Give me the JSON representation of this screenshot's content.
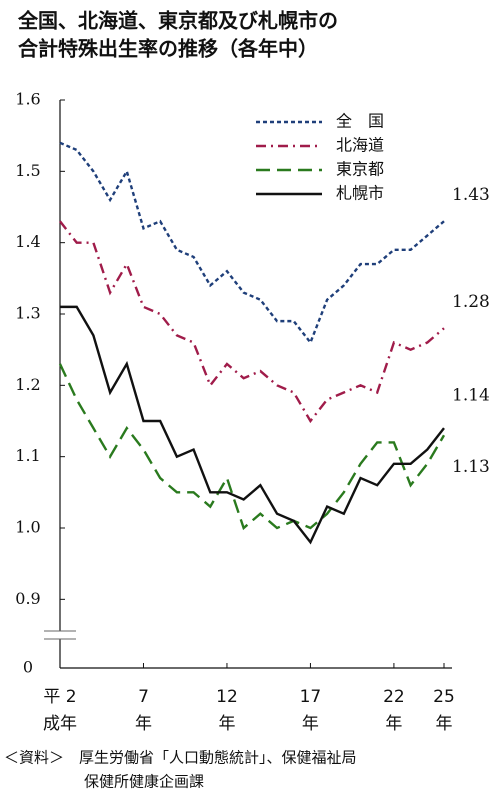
{
  "chart_data": {
    "type": "line",
    "title": [
      "全国、北海道、東京都及び札幌市の",
      "合計特殊出生率の推移（各年中）"
    ],
    "x": [
      2,
      3,
      4,
      5,
      6,
      7,
      8,
      9,
      10,
      11,
      12,
      13,
      14,
      15,
      16,
      17,
      18,
      19,
      20,
      21,
      22,
      23,
      24,
      25
    ],
    "xlim": [
      2,
      25
    ],
    "xticks": [
      {
        "value": 2,
        "label": "平 2"
      },
      7,
      12,
      17,
      22,
      25
    ],
    "xtick_sublabels": [
      "成年",
      "年",
      "年",
      "年",
      "年",
      "年"
    ],
    "ylim": [
      0,
      1.6
    ],
    "axis_break": [
      0,
      0.85
    ],
    "yticks": [
      0,
      0.9,
      {
        "value": 1.0,
        "label": "1.0"
      },
      1.1,
      1.2,
      1.3,
      1.4,
      1.5,
      1.6
    ],
    "grid": false,
    "legend": "top-right",
    "series": [
      {
        "name": "全　国",
        "color": "#1f3f7a",
        "dash": "dotted",
        "values": [
          1.54,
          1.53,
          1.5,
          1.46,
          1.5,
          1.42,
          1.43,
          1.39,
          1.38,
          1.34,
          1.36,
          1.33,
          1.32,
          1.29,
          1.29,
          1.26,
          1.32,
          1.34,
          1.37,
          1.37,
          1.39,
          1.39,
          1.41,
          1.43
        ]
      },
      {
        "name": "北海道",
        "color": "#a01c4a",
        "dash": "dashdot",
        "values": [
          1.43,
          1.4,
          1.4,
          1.33,
          1.37,
          1.31,
          1.3,
          1.27,
          1.26,
          1.2,
          1.23,
          1.21,
          1.22,
          1.2,
          1.19,
          1.15,
          1.18,
          1.19,
          1.2,
          1.19,
          1.26,
          1.25,
          1.26,
          1.28
        ]
      },
      {
        "name": "東京都",
        "color": "#2a7a1e",
        "dash": "dashed",
        "values": [
          1.23,
          1.18,
          1.14,
          1.1,
          1.14,
          1.11,
          1.07,
          1.05,
          1.05,
          1.03,
          1.07,
          1.0,
          1.02,
          1.0,
          1.01,
          1.0,
          1.02,
          1.05,
          1.09,
          1.12,
          1.12,
          1.06,
          1.09,
          1.13
        ]
      },
      {
        "name": "札幌市",
        "color": "#111111",
        "dash": "solid",
        "values": [
          1.31,
          1.31,
          1.27,
          1.19,
          1.23,
          1.15,
          1.15,
          1.1,
          1.11,
          1.05,
          1.05,
          1.04,
          1.06,
          1.02,
          1.01,
          0.98,
          1.03,
          1.02,
          1.07,
          1.06,
          1.09,
          1.09,
          1.11,
          1.14
        ]
      }
    ],
    "source": [
      "＜資料＞　厚生労働省「人口動態統計」、保健福祉局",
      "保健所健康企画課"
    ]
  }
}
